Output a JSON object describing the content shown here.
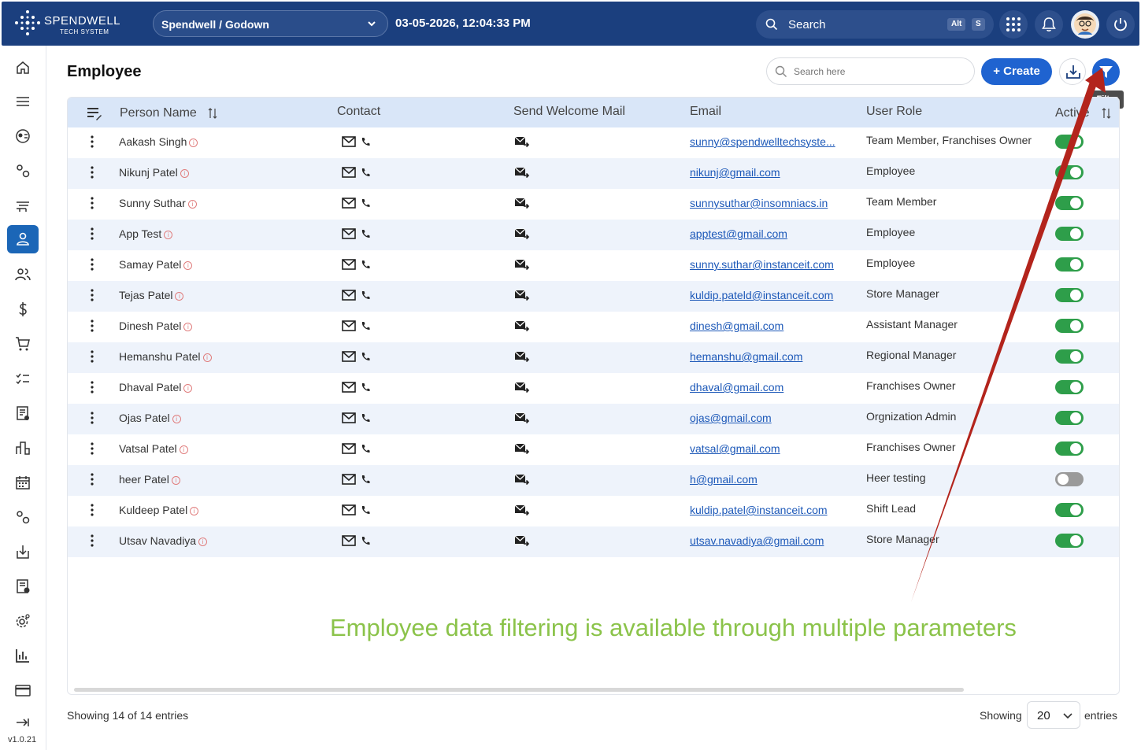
{
  "header": {
    "logo_line1": "SPENDWELL",
    "logo_line2": "TECH SYSTEM",
    "org_selector": "Spendwell / Godown",
    "datetime": "03-05-2026, 12:04:33 PM",
    "search_label": "Search",
    "shortcut_keys": [
      "Alt",
      "S"
    ],
    "icons": [
      "apps-grid-icon",
      "bell-icon",
      "avatar",
      "power-icon"
    ]
  },
  "sidebar": {
    "items": [
      "home-icon",
      "menu-icon",
      "dashboard-icon",
      "settings-icon",
      "delivery-icon",
      "employee-icon",
      "users-icon",
      "dollar-icon",
      "cart-icon",
      "checklist-icon",
      "report-icon",
      "org-chart-icon",
      "calendar-icon",
      "config-icon",
      "import-icon",
      "document-check-icon",
      "gear-icon",
      "analytics-icon",
      "card-icon"
    ],
    "active_item": "employee-icon",
    "version": "v1.0.21"
  },
  "page": {
    "title": "Employee",
    "search_placeholder": "Search here",
    "create_label": "+ Create",
    "filter_tooltip": "Filter"
  },
  "table": {
    "columns": [
      "Person Name",
      "Contact",
      "Send Welcome Mail",
      "Email",
      "User Role",
      "Active"
    ],
    "rows": [
      {
        "name": "Aakash Singh",
        "email": "sunny@spendwelltechsyste...",
        "role": "Team Member, Franchises Owner",
        "active": true
      },
      {
        "name": "Nikunj Patel",
        "email": "nikunj@gmail.com",
        "role": "Employee",
        "active": true
      },
      {
        "name": "Sunny Suthar",
        "email": "sunnysuthar@insomniacs.in",
        "role": "Team Member",
        "active": true
      },
      {
        "name": "App Test",
        "email": "apptest@gmail.com",
        "role": "Employee",
        "active": true
      },
      {
        "name": "Samay Patel",
        "email": "sunny.suthar@instanceit.com",
        "role": "Employee",
        "active": true
      },
      {
        "name": "Tejas Patel",
        "email": "kuldip.pateld@instanceit.com",
        "role": "Store Manager",
        "active": true
      },
      {
        "name": "Dinesh Patel",
        "email": "dinesh@gmail.com",
        "role": "Assistant Manager",
        "active": true
      },
      {
        "name": "Hemanshu Patel",
        "email": "hemanshu@gmail.com",
        "role": "Regional Manager",
        "active": true
      },
      {
        "name": "Dhaval Patel",
        "email": "dhaval@gmail.com",
        "role": "Franchises Owner",
        "active": true
      },
      {
        "name": "Ojas Patel",
        "email": "ojas@gmail.com",
        "role": "Orgnization Admin",
        "active": true
      },
      {
        "name": "Vatsal Patel",
        "email": "vatsal@gmail.com",
        "role": "Franchises Owner",
        "active": true
      },
      {
        "name": "heer Patel",
        "email": "h@gmail.com",
        "role": "Heer testing",
        "active": false
      },
      {
        "name": "Kuldeep Patel",
        "email": "kuldip.patel@instanceit.com",
        "role": "Shift Lead",
        "active": true
      },
      {
        "name": "Utsav Navadiya",
        "email": "utsav.navadiya@gmail.com",
        "role": "Store Manager",
        "active": true
      }
    ]
  },
  "annotation": "Employee data filtering is available through multiple parameters",
  "footer": {
    "summary": "Showing 14 of 14 entries",
    "showing_label": "Showing",
    "page_size": "20",
    "entries_label": "entries"
  },
  "colors": {
    "header_bg": "#1b3f7e",
    "primary": "#1f63d0",
    "table_header_bg": "#d9e6f8",
    "row_alt_bg": "#eef3fb",
    "toggle_on": "#2e9e4a",
    "annotation_text": "#8bc34a",
    "arrow": "#b3241c"
  }
}
